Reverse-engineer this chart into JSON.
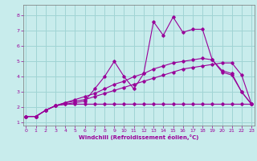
{
  "xlabel": "Windchill (Refroidissement éolien,°C)",
  "background_color": "#c8ecec",
  "grid_color": "#a0d4d4",
  "line_color": "#990099",
  "x_ticks": [
    0,
    1,
    2,
    3,
    4,
    5,
    6,
    7,
    8,
    9,
    10,
    11,
    12,
    13,
    14,
    15,
    16,
    17,
    18,
    19,
    20,
    21,
    22,
    23
  ],
  "y_ticks": [
    1,
    2,
    3,
    4,
    5,
    6,
    7,
    8
  ],
  "ylim": [
    0.8,
    8.7
  ],
  "xlim": [
    -0.3,
    23.3
  ],
  "series": [
    [
      1.4,
      1.4,
      1.8,
      2.1,
      2.2,
      2.2,
      2.2,
      2.2,
      2.2,
      2.2,
      2.2,
      2.2,
      2.2,
      2.2,
      2.2,
      2.2,
      2.2,
      2.2,
      2.2,
      2.2,
      2.2,
      2.2,
      2.2,
      2.2
    ],
    [
      1.4,
      1.4,
      1.8,
      2.1,
      2.3,
      2.4,
      2.5,
      2.7,
      2.9,
      3.1,
      3.3,
      3.5,
      3.7,
      3.9,
      4.1,
      4.3,
      4.5,
      4.6,
      4.7,
      4.8,
      4.9,
      4.9,
      4.1,
      2.2
    ],
    [
      1.4,
      1.4,
      1.8,
      2.1,
      2.3,
      2.5,
      2.7,
      2.9,
      3.2,
      3.5,
      3.7,
      4.0,
      4.2,
      4.5,
      4.7,
      4.9,
      5.0,
      5.1,
      5.2,
      5.1,
      4.4,
      4.2,
      3.0,
      2.2
    ],
    [
      1.4,
      1.4,
      1.8,
      2.1,
      2.2,
      2.3,
      2.4,
      3.2,
      4.0,
      5.0,
      4.0,
      3.2,
      4.2,
      7.6,
      6.7,
      7.9,
      6.9,
      7.1,
      7.1,
      5.1,
      4.3,
      4.1,
      3.0,
      2.2
    ]
  ],
  "line_styles": [
    "-",
    "-",
    "-",
    "-"
  ]
}
